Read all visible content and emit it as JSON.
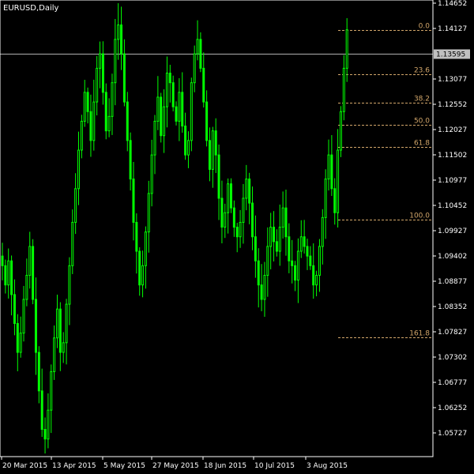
{
  "header": {
    "symbol_label": "EURUSD,Daily"
  },
  "colors": {
    "background": "#000000",
    "candle": "#00ff00",
    "axis": "#ffffff",
    "fib": "#d2a66a",
    "current_line": "#b0b0b0",
    "price_box": "#c0c0c0"
  },
  "chart_data": {
    "type": "candlestick",
    "symbol": "EURUSD",
    "timeframe": "Daily",
    "ylim": [
      1.052,
      1.148
    ],
    "y_ticks": [
      "1.14652",
      "1.14127",
      "1.13077",
      "1.12552",
      "1.12027",
      "1.11502",
      "1.10977",
      "1.10452",
      "1.09927",
      "1.09402",
      "1.08877",
      "1.08352",
      "1.07827",
      "1.07302",
      "1.06777",
      "1.06252",
      "1.05727"
    ],
    "x_ticks": [
      "20 Mar 2015",
      "13 Apr 2015",
      "5 May 2015",
      "27 May 2015",
      "18 Jun 2015",
      "10 Jul 2015",
      "3 Aug 2015"
    ],
    "current_price": "1.13595",
    "fibonacci": {
      "start_price": 1.1015,
      "end_price": 1.141,
      "levels": [
        {
          "label": "0.0",
          "ratio": 0.0
        },
        {
          "label": "23.6",
          "ratio": 0.236
        },
        {
          "label": "38.2",
          "ratio": 0.382
        },
        {
          "label": "50.0",
          "ratio": 0.5
        },
        {
          "label": "61.8",
          "ratio": 0.618
        },
        {
          "label": "100.0",
          "ratio": 1.0
        },
        {
          "label": "161.8",
          "ratio": 1.618
        }
      ]
    },
    "path": [
      1.092,
      1.088,
      1.093,
      1.086,
      1.08,
      1.074,
      1.078,
      1.085,
      1.09,
      1.096,
      1.085,
      1.074,
      1.066,
      1.058,
      1.056,
      1.062,
      1.07,
      1.077,
      1.083,
      1.074,
      1.076,
      1.084,
      1.092,
      1.101,
      1.108,
      1.116,
      1.122,
      1.128,
      1.124,
      1.118,
      1.126,
      1.133,
      1.136,
      1.128,
      1.12,
      1.123,
      1.13,
      1.139,
      1.142,
      1.136,
      1.126,
      1.118,
      1.11,
      1.101,
      1.095,
      1.088,
      1.092,
      1.099,
      1.107,
      1.115,
      1.122,
      1.127,
      1.119,
      1.125,
      1.132,
      1.13,
      1.125,
      1.122,
      1.128,
      1.121,
      1.115,
      1.118,
      1.13,
      1.136,
      1.139,
      1.133,
      1.126,
      1.118,
      1.112,
      1.12,
      1.115,
      1.106,
      1.1,
      1.103,
      1.109,
      1.104,
      1.1,
      1.098,
      1.101,
      1.106,
      1.11,
      1.105,
      1.098,
      1.093,
      1.088,
      1.085,
      1.09,
      1.096,
      1.1,
      1.097,
      1.095,
      1.1,
      1.104,
      1.098,
      1.093,
      1.092,
      1.089,
      1.095,
      1.098,
      1.096,
      1.094,
      1.092,
      1.088,
      1.09,
      1.096,
      1.102,
      1.11,
      1.115,
      1.108,
      1.103,
      1.116,
      1.124,
      1.133,
      1.141
    ]
  }
}
